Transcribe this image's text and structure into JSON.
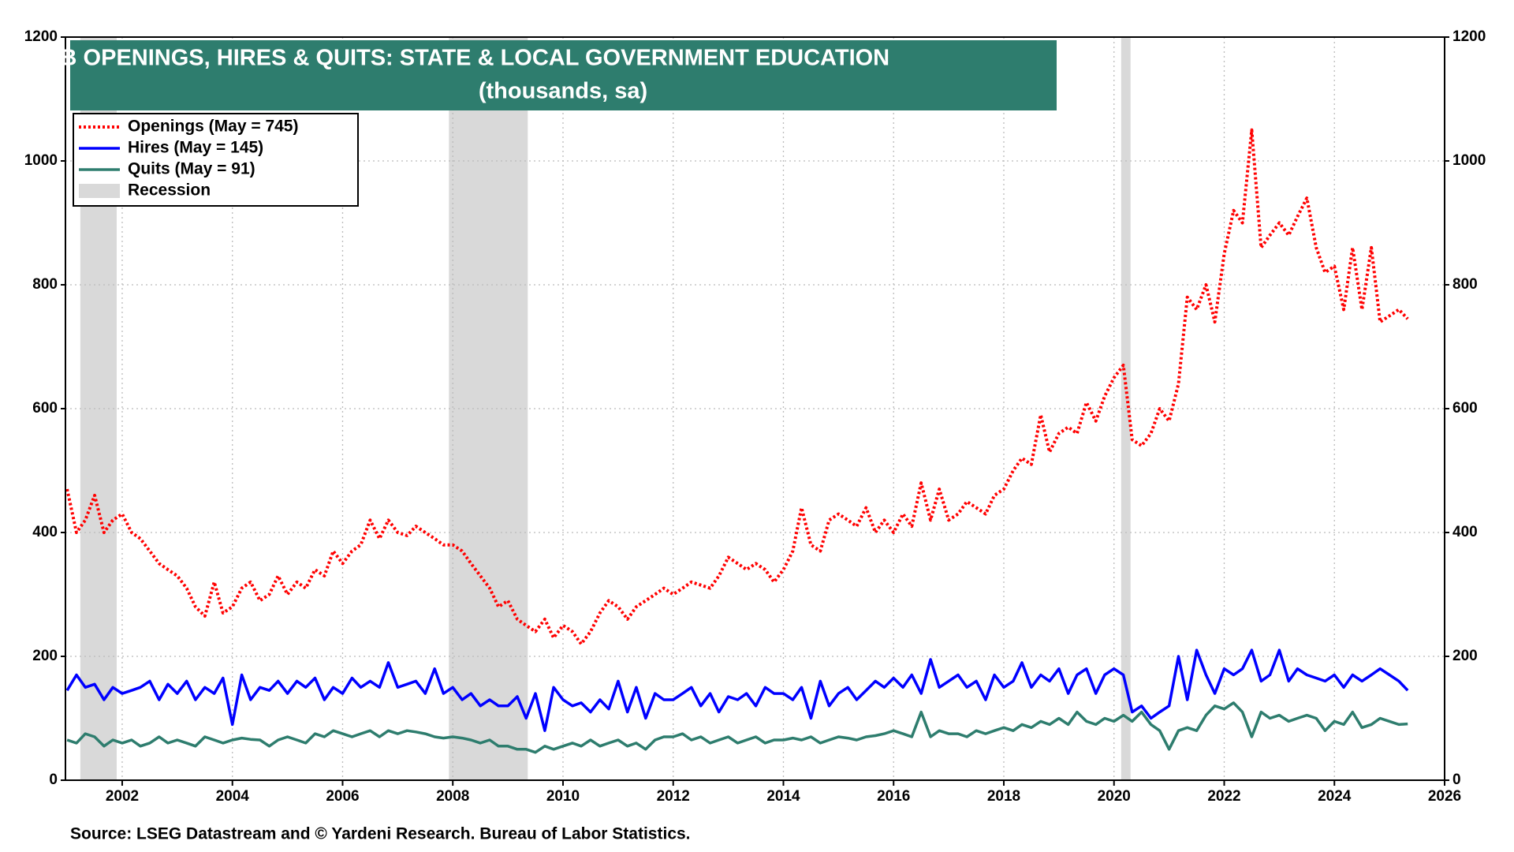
{
  "chart_data": {
    "type": "line",
    "title": "JOB OPENINGS, HIRES & QUITS: STATE & LOCAL GOVERNMENT EDUCATION",
    "subtitle": "(thousands, sa)",
    "source": "Source: LSEG Datastream and © Yardeni Research. Bureau of Labor Statistics.",
    "x": [
      2001,
      2001.17,
      2001.33,
      2001.5,
      2001.67,
      2001.83,
      2002,
      2002.17,
      2002.33,
      2002.5,
      2002.67,
      2002.83,
      2003,
      2003.17,
      2003.33,
      2003.5,
      2003.67,
      2003.83,
      2004,
      2004.17,
      2004.33,
      2004.5,
      2004.67,
      2004.83,
      2005,
      2005.17,
      2005.33,
      2005.5,
      2005.67,
      2005.83,
      2006,
      2006.17,
      2006.33,
      2006.5,
      2006.67,
      2006.83,
      2007,
      2007.17,
      2007.33,
      2007.5,
      2007.67,
      2007.83,
      2008,
      2008.17,
      2008.33,
      2008.5,
      2008.67,
      2008.83,
      2009,
      2009.17,
      2009.33,
      2009.5,
      2009.67,
      2009.83,
      2010,
      2010.17,
      2010.33,
      2010.5,
      2010.67,
      2010.83,
      2011,
      2011.17,
      2011.33,
      2011.5,
      2011.67,
      2011.83,
      2012,
      2012.17,
      2012.33,
      2012.5,
      2012.67,
      2012.83,
      2013,
      2013.17,
      2013.33,
      2013.5,
      2013.67,
      2013.83,
      2014,
      2014.17,
      2014.33,
      2014.5,
      2014.67,
      2014.83,
      2015,
      2015.17,
      2015.33,
      2015.5,
      2015.67,
      2015.83,
      2016,
      2016.17,
      2016.33,
      2016.5,
      2016.67,
      2016.83,
      2017,
      2017.17,
      2017.33,
      2017.5,
      2017.67,
      2017.83,
      2018,
      2018.17,
      2018.33,
      2018.5,
      2018.67,
      2018.83,
      2019,
      2019.17,
      2019.33,
      2019.5,
      2019.67,
      2019.83,
      2020,
      2020.17,
      2020.33,
      2020.5,
      2020.67,
      2020.83,
      2021,
      2021.17,
      2021.33,
      2021.5,
      2021.67,
      2021.83,
      2022,
      2022.17,
      2022.33,
      2022.5,
      2022.67,
      2022.83,
      2023,
      2023.17,
      2023.33,
      2023.5,
      2023.67,
      2023.83,
      2024,
      2024.17,
      2024.33,
      2024.5,
      2024.67,
      2024.83,
      2025,
      2025.17,
      2025.33
    ],
    "series": [
      {
        "name": "Openings (May = 745)",
        "color": "#ff0000",
        "style": "dotted",
        "values": [
          470,
          400,
          420,
          460,
          400,
          420,
          430,
          400,
          390,
          370,
          350,
          340,
          330,
          310,
          280,
          265,
          320,
          270,
          280,
          310,
          320,
          290,
          300,
          330,
          300,
          320,
          310,
          340,
          330,
          370,
          350,
          370,
          380,
          420,
          390,
          420,
          400,
          395,
          410,
          400,
          390,
          380,
          380,
          370,
          350,
          330,
          310,
          280,
          290,
          260,
          250,
          240,
          260,
          230,
          250,
          240,
          220,
          240,
          270,
          290,
          280,
          260,
          280,
          290,
          300,
          310,
          300,
          310,
          320,
          315,
          310,
          330,
          360,
          350,
          340,
          350,
          340,
          320,
          340,
          370,
          440,
          380,
          370,
          420,
          430,
          420,
          410,
          440,
          400,
          420,
          400,
          430,
          410,
          480,
          420,
          470,
          420,
          430,
          450,
          440,
          430,
          460,
          470,
          500,
          520,
          510,
          590,
          530,
          560,
          570,
          560,
          610,
          580,
          620,
          650,
          670,
          550,
          540,
          560,
          600,
          580,
          640,
          780,
          760,
          800,
          740,
          850,
          920,
          900,
          1050,
          860,
          880,
          900,
          880,
          910,
          940,
          860,
          820,
          830,
          760,
          860,
          760,
          860,
          740,
          750,
          760,
          745
        ]
      },
      {
        "name": "Hires (May = 145)",
        "color": "#0000ff",
        "style": "solid",
        "values": [
          145,
          170,
          150,
          155,
          130,
          150,
          140,
          145,
          150,
          160,
          130,
          155,
          140,
          160,
          130,
          150,
          140,
          165,
          90,
          170,
          130,
          150,
          145,
          160,
          140,
          160,
          150,
          165,
          130,
          150,
          140,
          165,
          150,
          160,
          150,
          190,
          150,
          155,
          160,
          140,
          180,
          140,
          150,
          130,
          140,
          120,
          130,
          120,
          120,
          135,
          100,
          140,
          80,
          150,
          130,
          120,
          125,
          110,
          130,
          115,
          160,
          110,
          150,
          100,
          140,
          130,
          130,
          140,
          150,
          120,
          140,
          110,
          135,
          130,
          140,
          120,
          150,
          140,
          140,
          130,
          150,
          100,
          160,
          120,
          140,
          150,
          130,
          145,
          160,
          150,
          165,
          150,
          170,
          140,
          195,
          150,
          160,
          170,
          150,
          160,
          130,
          170,
          150,
          160,
          190,
          150,
          170,
          160,
          180,
          140,
          170,
          180,
          140,
          170,
          180,
          170,
          110,
          120,
          100,
          110,
          120,
          200,
          130,
          210,
          170,
          140,
          180,
          170,
          180,
          210,
          160,
          170,
          210,
          160,
          180,
          170,
          165,
          160,
          170,
          150,
          170,
          160,
          170,
          180,
          170,
          160,
          145
        ]
      },
      {
        "name": "Quits (May = 91)",
        "color": "#2e7d6e",
        "style": "solid",
        "values": [
          65,
          60,
          75,
          70,
          55,
          65,
          60,
          65,
          55,
          60,
          70,
          60,
          65,
          60,
          55,
          70,
          65,
          60,
          65,
          68,
          66,
          65,
          55,
          65,
          70,
          65,
          60,
          75,
          70,
          80,
          75,
          70,
          75,
          80,
          70,
          80,
          75,
          80,
          78,
          75,
          70,
          68,
          70,
          68,
          65,
          60,
          65,
          55,
          55,
          50,
          50,
          45,
          55,
          50,
          55,
          60,
          55,
          65,
          55,
          60,
          65,
          55,
          60,
          50,
          65,
          70,
          70,
          75,
          65,
          70,
          60,
          65,
          70,
          60,
          65,
          70,
          60,
          65,
          65,
          68,
          65,
          70,
          60,
          65,
          70,
          68,
          65,
          70,
          72,
          75,
          80,
          75,
          70,
          110,
          70,
          80,
          75,
          75,
          70,
          80,
          75,
          80,
          85,
          80,
          90,
          85,
          95,
          90,
          100,
          90,
          110,
          95,
          90,
          100,
          95,
          105,
          95,
          110,
          90,
          80,
          50,
          80,
          85,
          80,
          105,
          120,
          115,
          125,
          110,
          70,
          110,
          100,
          105,
          95,
          100,
          105,
          100,
          80,
          95,
          90,
          110,
          85,
          90,
          100,
          95,
          90,
          91
        ]
      }
    ],
    "recession": {
      "name": "Recession",
      "color": "#d9d9d9",
      "periods": [
        [
          2001.24,
          2001.9
        ],
        [
          2007.93,
          2009.36
        ],
        [
          2020.13,
          2020.3
        ]
      ]
    },
    "xlim": [
      2000.97,
      2026
    ],
    "xticks": [
      2002,
      2004,
      2006,
      2008,
      2010,
      2012,
      2014,
      2016,
      2018,
      2020,
      2022,
      2024,
      2026
    ],
    "ylim": [
      0,
      1200
    ],
    "yticks": [
      0,
      200,
      400,
      600,
      800,
      1000,
      1200
    ],
    "grid": true
  }
}
